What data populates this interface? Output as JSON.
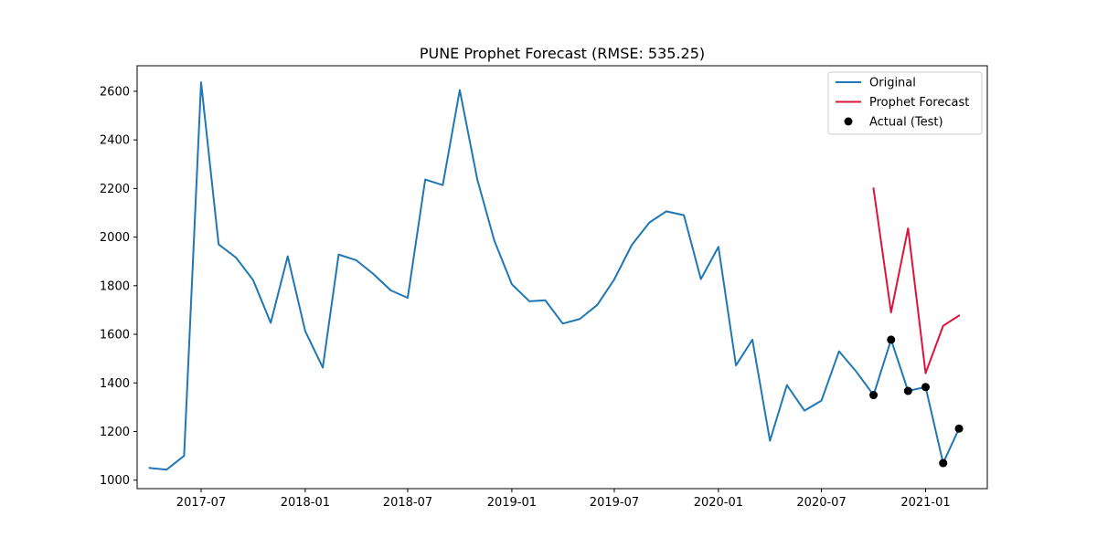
{
  "chart_data": {
    "type": "line",
    "title": "PUNE Prophet Forecast (RMSE: 535.25)",
    "xlabel": "",
    "ylabel": "",
    "x_ticks": [
      "2017-07",
      "2018-01",
      "2018-07",
      "2019-01",
      "2019-07",
      "2020-01",
      "2020-07",
      "2021-01"
    ],
    "y_ticks": [
      1000,
      1200,
      1400,
      1600,
      1800,
      2000,
      2200,
      2400,
      2600
    ],
    "xlim": [
      "2017-03-10",
      "2021-04-20"
    ],
    "ylim": [
      965,
      2705
    ],
    "grid": false,
    "legend_position": "top-right",
    "series": [
      {
        "name": "Original",
        "kind": "line",
        "color": "#1f77b4",
        "x": [
          "2017-04-01",
          "2017-05-01",
          "2017-06-01",
          "2017-07-01",
          "2017-08-01",
          "2017-09-01",
          "2017-10-01",
          "2017-11-01",
          "2017-12-01",
          "2018-01-01",
          "2018-02-01",
          "2018-03-01",
          "2018-04-01",
          "2018-05-01",
          "2018-06-01",
          "2018-07-01",
          "2018-08-01",
          "2018-09-01",
          "2018-10-01",
          "2018-11-01",
          "2018-12-01",
          "2019-01-01",
          "2019-02-01",
          "2019-03-01",
          "2019-04-01",
          "2019-05-01",
          "2019-06-01",
          "2019-07-01",
          "2019-08-01",
          "2019-09-01",
          "2019-10-01",
          "2019-11-01",
          "2019-12-01",
          "2020-01-01",
          "2020-02-01",
          "2020-03-01",
          "2020-04-01",
          "2020-05-01",
          "2020-06-01",
          "2020-07-01",
          "2020-08-01",
          "2020-09-01",
          "2020-10-01",
          "2020-11-01",
          "2020-12-01",
          "2021-01-01",
          "2021-02-01",
          "2021-03-01"
        ],
        "values": [
          1050,
          1043,
          1100,
          2637,
          1970,
          1915,
          1823,
          1647,
          1921,
          1613,
          1463,
          1928,
          1905,
          1849,
          1781,
          1750,
          2237,
          2214,
          2605,
          2237,
          1986,
          1806,
          1736,
          1740,
          1644,
          1663,
          1721,
          1826,
          1968,
          2060,
          2106,
          2090,
          1827,
          1960,
          1472,
          1578,
          1162,
          1391,
          1286,
          1327,
          1530,
          1445,
          1350,
          1578,
          1367,
          1383,
          1070,
          1212
        ]
      },
      {
        "name": "Prophet Forecast",
        "kind": "line",
        "color": "#dc143c",
        "x": [
          "2020-10-01",
          "2020-11-01",
          "2020-12-01",
          "2021-01-01",
          "2021-02-01",
          "2021-03-01"
        ],
        "values": [
          2200,
          1690,
          2036,
          1440,
          1635,
          1677
        ]
      },
      {
        "name": "Actual (Test)",
        "kind": "scatter",
        "color": "#000000",
        "x": [
          "2020-10-01",
          "2020-11-01",
          "2020-12-01",
          "2021-01-01",
          "2021-02-01",
          "2021-03-01"
        ],
        "values": [
          1350,
          1578,
          1367,
          1383,
          1070,
          1212
        ]
      }
    ]
  }
}
